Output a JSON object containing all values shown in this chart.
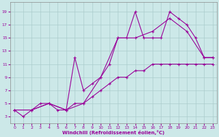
{
  "xlabel": "Windchill (Refroidissement éolien,°C)",
  "background_color": "#cce8e8",
  "grid_color": "#aacccc",
  "line_color": "#990099",
  "xlim": [
    -0.5,
    23.5
  ],
  "ylim": [
    2,
    20.5
  ],
  "xticks": [
    0,
    1,
    2,
    3,
    4,
    5,
    6,
    7,
    8,
    9,
    10,
    11,
    12,
    13,
    14,
    15,
    16,
    17,
    18,
    19,
    20,
    21,
    22,
    23
  ],
  "yticks": [
    3,
    5,
    7,
    9,
    11,
    13,
    15,
    17,
    19
  ],
  "series": [
    {
      "x": [
        0,
        1,
        2,
        3,
        4,
        5,
        6,
        7,
        8,
        9,
        10,
        11,
        12,
        13,
        14,
        15,
        16,
        17,
        18,
        19,
        20,
        21,
        22,
        23
      ],
      "y": [
        4,
        3,
        4,
        5,
        5,
        4,
        4,
        5,
        5,
        6,
        7,
        8,
        9,
        9,
        10,
        10,
        11,
        11,
        11,
        11,
        11,
        11,
        11,
        11
      ]
    },
    {
      "x": [
        0,
        2,
        4,
        6,
        8,
        10,
        12,
        14,
        16,
        18,
        20,
        22,
        23
      ],
      "y": [
        4,
        4,
        5,
        4,
        5,
        9,
        15,
        15,
        16,
        18,
        16,
        12,
        12
      ]
    },
    {
      "x": [
        0,
        2,
        4,
        6,
        7,
        8,
        9,
        10,
        11,
        12,
        13,
        14,
        15,
        16,
        17,
        18,
        19,
        20,
        21,
        22,
        23
      ],
      "y": [
        4,
        4,
        5,
        4,
        12,
        7,
        8,
        9,
        11,
        15,
        15,
        19,
        15,
        15,
        15,
        19,
        18,
        17,
        15,
        12,
        12
      ]
    }
  ]
}
